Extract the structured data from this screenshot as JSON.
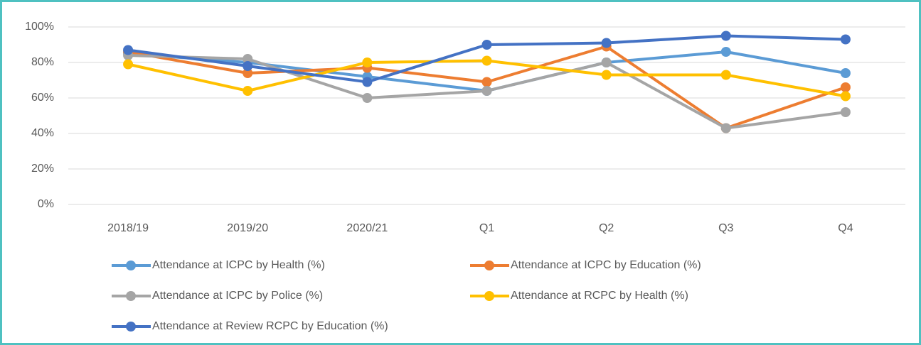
{
  "chart_data": {
    "type": "line",
    "categories": [
      "2018/19",
      "2019/20",
      "2020/21",
      "Q1",
      "Q2",
      "Q3",
      "Q4"
    ],
    "series": [
      {
        "name": "Attendance at ICPC by Health (%)",
        "color": "#5b9bd5",
        "values": [
          85,
          80,
          72,
          64,
          80,
          86,
          74
        ]
      },
      {
        "name": "Attendance at ICPC by Education (%)",
        "color": "#ed7d31",
        "values": [
          86,
          74,
          77,
          69,
          89,
          43,
          66
        ]
      },
      {
        "name": "Attendance at ICPC by Police (%)",
        "color": "#a5a5a5",
        "values": [
          84,
          82,
          60,
          64,
          80,
          43,
          52
        ]
      },
      {
        "name": "Attendance at RCPC by Health (%)",
        "color": "#ffc000",
        "values": [
          79,
          64,
          80,
          81,
          73,
          73,
          61
        ]
      },
      {
        "name": "Attendance at Review RCPC by Education (%)",
        "color": "#4472c4",
        "values": [
          87,
          78,
          69,
          90,
          91,
          95,
          93
        ]
      }
    ],
    "ylim": [
      0,
      100
    ],
    "yticks": [
      {
        "value": 0,
        "label": "0%"
      },
      {
        "value": 20,
        "label": "20%"
      },
      {
        "value": 40,
        "label": "40%"
      },
      {
        "value": 60,
        "label": "60%"
      },
      {
        "value": 80,
        "label": "80%"
      },
      {
        "value": 100,
        "label": "100%"
      }
    ],
    "grid": true,
    "legend": "bottom"
  }
}
